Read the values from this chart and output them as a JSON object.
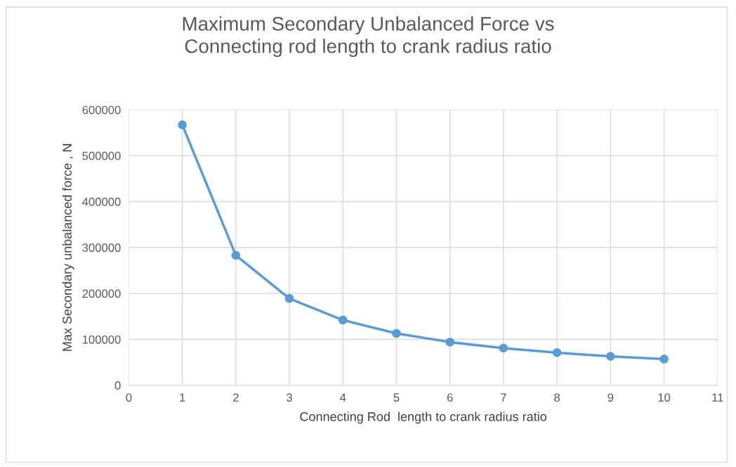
{
  "chart_data": {
    "type": "line",
    "title": "Maximum Secondary Unbalanced Force vs\nConnecting rod length to crank radius ratio",
    "xlabel": "Connecting Rod  length to crank radius ratio",
    "ylabel": "Max Secondary unbalanced force , N",
    "x": [
      1,
      2,
      3,
      4,
      5,
      6,
      7,
      8,
      9,
      10
    ],
    "series": [
      {
        "color": "#5b9bd5",
        "values": [
          567000,
          283000,
          189000,
          142000,
          113000,
          94000,
          81000,
          71000,
          63000,
          57000
        ]
      }
    ],
    "xlim": [
      0,
      11
    ],
    "xticks": [
      0,
      1,
      2,
      3,
      4,
      5,
      6,
      7,
      8,
      9,
      10,
      11
    ],
    "ylim": [
      0,
      600000
    ],
    "yticks": [
      0,
      100000,
      200000,
      300000,
      400000,
      500000,
      600000
    ],
    "grid": true,
    "marker": "circle",
    "line_style": "solid"
  }
}
